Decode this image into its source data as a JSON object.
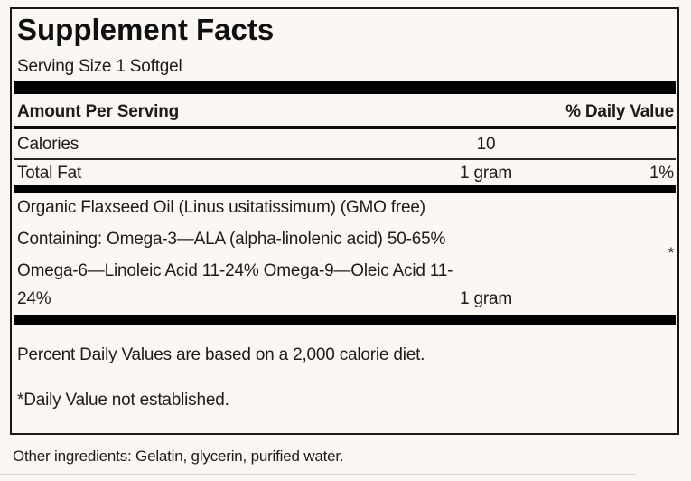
{
  "label": {
    "title": "Supplement Facts",
    "serving_size": "Serving Size 1 Softgel",
    "header": {
      "amount_per_serving": "Amount Per Serving",
      "daily_value": "% Daily Value"
    },
    "rows": [
      {
        "name": "Calories",
        "amount": "10",
        "dv": ""
      },
      {
        "name": "Total Fat",
        "amount": "1 gram",
        "dv": "1%"
      }
    ],
    "ingredient_block": {
      "lines": [
        "Organic Flaxseed Oil (Linus usitatissimum) (GMO free)",
        "Containing: Omega-3—ALA (alpha-linolenic acid) 50-65%",
        "Omega-6—Linoleic Acid 11-24% Omega-9—Oleic Acid 11-",
        "24%"
      ],
      "amount": "1 gram",
      "dv": "*"
    },
    "footnotes": {
      "percent_dv": "Percent Daily Values are based on a 2,000 calorie diet.",
      "not_established": "*Daily Value not established."
    },
    "other_ingredients": "Other ingredients: Gelatin, glycerin, purified water."
  },
  "colors": {
    "background": "#fbf7f2",
    "text": "#1c1c1c",
    "rule": "#000000"
  }
}
